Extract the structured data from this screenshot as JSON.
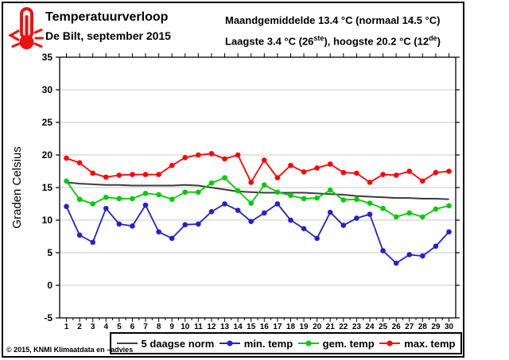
{
  "header": {
    "title": "Temperatuurverloop",
    "subtitle": "De Bilt, september 2015",
    "stats_line1": "Maandgemiddelde 13.4 °C (normaal 14.5 °C)",
    "stats_line2": {
      "p1": "Laagste 3.4 °C (26",
      "sup1": "ste",
      "p2": "), hoogste 20.2 °C (12",
      "sup2": "de",
      "p3": ")"
    }
  },
  "chart_data": {
    "type": "line",
    "title": "Temperatuurverloop",
    "subtitle": "De Bilt, september 2015",
    "xlabel": "",
    "ylabel": "Graden Celsius",
    "ylim": [
      -5,
      35
    ],
    "ytick_step": 5,
    "grid": true,
    "legend_position": "bottom",
    "x": [
      1,
      2,
      3,
      4,
      5,
      6,
      7,
      8,
      9,
      10,
      11,
      12,
      13,
      14,
      15,
      16,
      17,
      18,
      19,
      20,
      21,
      22,
      23,
      24,
      25,
      26,
      27,
      28,
      29,
      30
    ],
    "series": [
      {
        "name": "5 daagse norm",
        "color": "#3c3c3c",
        "marker": false,
        "values": [
          15.8,
          15.6,
          15.5,
          15.4,
          15.4,
          15.3,
          15.3,
          15.3,
          15.3,
          15.4,
          15.3,
          15.0,
          14.7,
          14.4,
          14.3,
          14.2,
          14.2,
          14.2,
          14.2,
          14.1,
          14.0,
          13.9,
          13.7,
          13.6,
          13.5,
          13.4,
          13.4,
          13.3,
          13.3,
          13.2
        ]
      },
      {
        "name": "min. temp",
        "color": "#2222cc",
        "marker": true,
        "values": [
          12.1,
          7.7,
          6.6,
          11.8,
          9.4,
          9.1,
          12.3,
          8.2,
          7.2,
          9.3,
          9.4,
          11.3,
          12.5,
          11.5,
          9.8,
          11.1,
          12.5,
          10.0,
          8.7,
          7.2,
          11.2,
          9.2,
          10.3,
          10.9,
          5.3,
          3.4,
          4.7,
          4.5,
          6.0,
          8.2
        ]
      },
      {
        "name": "gem. temp",
        "color": "#00cc00",
        "marker": true,
        "values": [
          16.0,
          13.2,
          12.5,
          13.5,
          13.3,
          13.3,
          14.1,
          13.9,
          13.2,
          14.3,
          14.3,
          15.7,
          16.5,
          14.5,
          12.6,
          15.4,
          14.3,
          13.8,
          13.3,
          13.4,
          14.6,
          13.1,
          13.2,
          12.6,
          11.8,
          10.5,
          11.1,
          10.5,
          11.7,
          12.2
        ]
      },
      {
        "name": "max. temp",
        "color": "#ff0000",
        "marker": true,
        "values": [
          19.5,
          18.8,
          17.2,
          16.6,
          16.9,
          17.0,
          17.0,
          17.0,
          18.4,
          19.6,
          20.0,
          20.2,
          19.4,
          20.0,
          15.8,
          19.2,
          16.5,
          18.4,
          17.4,
          18.0,
          18.6,
          17.3,
          17.2,
          15.8,
          17.0,
          16.9,
          17.5,
          16.0,
          17.3,
          17.5
        ]
      }
    ]
  },
  "footer": {
    "copyright": "© 2015, KNMI Klimaatdata en –advies"
  },
  "icon": {
    "thermometer_color": "#ee1111"
  }
}
